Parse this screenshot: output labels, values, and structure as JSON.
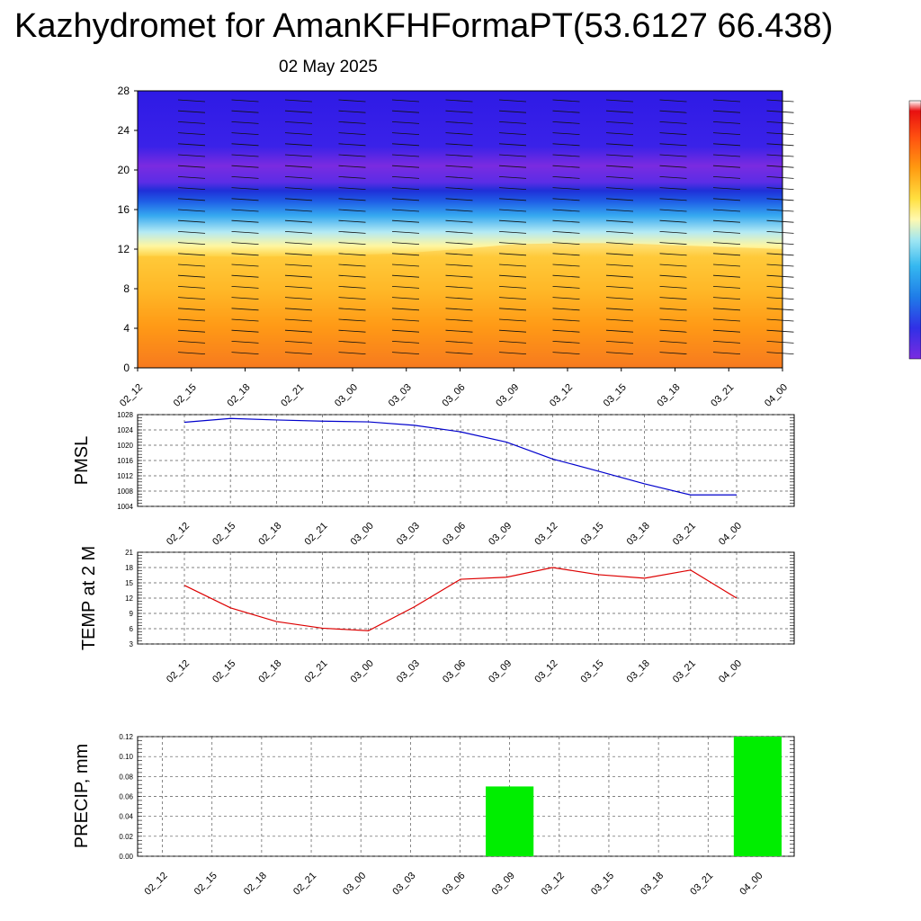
{
  "title": "Kazhydromet for AmanKFHFormaPT(53.6127 66.438)",
  "subtitle": "02 May 2025",
  "colors": {
    "pmsl_line": "#0000cc",
    "temp_line": "#dd0000",
    "precip_bar": "#00ee00",
    "grid": "#555555",
    "colorbar": [
      "#7a2be0",
      "#4d2fe8",
      "#2a3fe6",
      "#1f7ce8",
      "#35b8f0",
      "#9fe6f2",
      "#fff9b0",
      "#ffd060",
      "#ffb020",
      "#ff8000",
      "#ff4a10",
      "#e81010"
    ]
  },
  "chart_data": [
    {
      "type": "heatmap",
      "name": "vertical cross-section",
      "ylim": [
        0,
        28
      ],
      "yticks": [
        0,
        4,
        8,
        12,
        16,
        20,
        24,
        28
      ],
      "xticks": [
        "02_12",
        "02_15",
        "02_18",
        "02_21",
        "03_00",
        "03_03",
        "03_06",
        "03_09",
        "03_12",
        "03_15",
        "03_18",
        "03_21",
        "04_00"
      ],
      "warm_layer_top": [
        11.3,
        11.3,
        11.2,
        11.3,
        11.4,
        11.6,
        12.0,
        12.5,
        12.6,
        12.6,
        12.4,
        12.2,
        12.0
      ],
      "cold_layer_center": 18.5
    },
    {
      "type": "line",
      "ylabel": "PMSL",
      "x": [
        "02_12",
        "02_15",
        "02_18",
        "02_21",
        "03_00",
        "03_03",
        "03_06",
        "03_09",
        "03_12",
        "03_15",
        "03_18",
        "03_21",
        "04_00"
      ],
      "values": [
        1026.0,
        1027.0,
        1026.6,
        1026.3,
        1026.1,
        1025.2,
        1023.5,
        1020.8,
        1016.4,
        1013.2,
        1009.9,
        1007.0,
        1007.0
      ],
      "ylim": [
        1004,
        1028
      ],
      "yticks": [
        1004,
        1008,
        1012,
        1016,
        1020,
        1024,
        1028
      ]
    },
    {
      "type": "line",
      "ylabel": "TEMP at 2 M",
      "x": [
        "02_12",
        "02_15",
        "02_18",
        "02_21",
        "03_00",
        "03_03",
        "03_06",
        "03_09",
        "03_12",
        "03_15",
        "03_18",
        "03_21",
        "04_00"
      ],
      "values": [
        14.5,
        10.1,
        7.4,
        6.1,
        5.6,
        10.3,
        15.7,
        16.1,
        18.0,
        16.6,
        15.9,
        17.5,
        12.0
      ],
      "ylim": [
        3,
        21
      ],
      "yticks": [
        3,
        6,
        9,
        12,
        15,
        18,
        21
      ]
    },
    {
      "type": "bar",
      "ylabel": "PRECIP, mm",
      "categories": [
        "02_12",
        "02_15",
        "02_18",
        "02_21",
        "03_00",
        "03_03",
        "03_06",
        "03_09",
        "03_12",
        "03_15",
        "03_18",
        "03_21",
        "04_00"
      ],
      "values": [
        0,
        0,
        0,
        0,
        0,
        0,
        0,
        0.07,
        0,
        0,
        0,
        0,
        0.12
      ],
      "ylim": [
        0,
        0.12
      ],
      "yticks": [
        "0.00",
        "0.02",
        "0.04",
        "0.06",
        "0.08",
        "0.10",
        "0.12"
      ]
    }
  ]
}
